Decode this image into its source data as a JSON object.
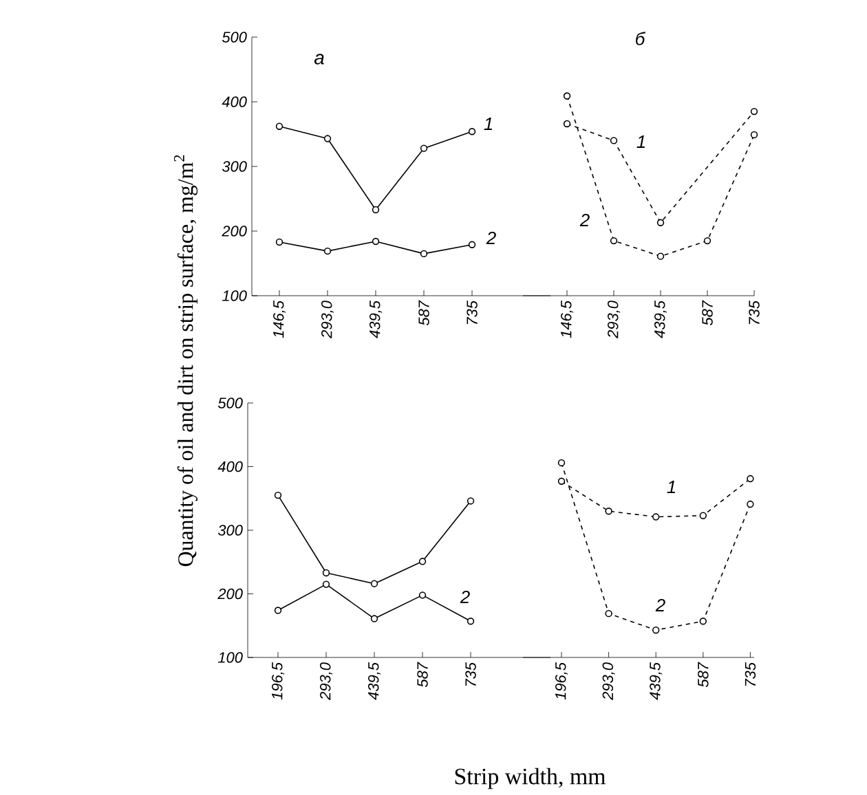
{
  "chart_data": [
    {
      "type": "line",
      "ylabel": "Quantity of oil and dirt on strip surface, mg/m$^{2}$",
      "categories": [
        "146,5",
        "293,0",
        "439,5",
        "587",
        "735"
      ],
      "ylim": [
        100,
        500
      ],
      "yticks": [
        100,
        200,
        300,
        400,
        500
      ],
      "marker": "circle",
      "line_style": "solid",
      "grid": false,
      "series": [
        {
          "color": "#000000",
          "values": [
            362,
            343,
            233,
            328,
            354
          ]
        },
        {
          "color": "#000000",
          "values": [
            183,
            169,
            184,
            165,
            179
          ]
        }
      ],
      "annotations": [
        "a",
        "1",
        "2"
      ]
    },
    {
      "type": "line",
      "categories": [
        "146,5",
        "293,0",
        "439,5",
        "587",
        "735"
      ],
      "ylim": [
        100,
        500
      ],
      "tick_labels": "x",
      "marker": "circle",
      "line_style": "dashed",
      "grid": false,
      "series": [
        {
          "color": "#000000",
          "values": [
            366,
            340,
            213,
            null,
            385
          ]
        },
        {
          "color": "#000000",
          "values": [
            409,
            185,
            161,
            185,
            349
          ]
        }
      ],
      "annotations": [
        "б",
        "1",
        "2"
      ]
    },
    {
      "type": "line",
      "xlabel": "Strip width, mm",
      "categories": [
        "196,5",
        "293,0",
        "439,5",
        "587",
        "735"
      ],
      "ylim": [
        100,
        500
      ],
      "yticks": [
        100,
        200,
        300,
        400,
        500
      ],
      "marker": "circle",
      "line_style": "solid",
      "grid": false,
      "series": [
        {
          "color": "#000000",
          "values": [
            355,
            233,
            216,
            251,
            346
          ]
        },
        {
          "color": "#000000",
          "values": [
            174,
            215,
            161,
            198,
            157
          ]
        }
      ],
      "annotations": [
        "2"
      ]
    },
    {
      "type": "line",
      "categories": [
        "196,5",
        "293,0",
        "439,5",
        "587",
        "735"
      ],
      "ylim": [
        100,
        500
      ],
      "tick_labels": "x",
      "marker": "circle",
      "line_style": "dashed",
      "grid": false,
      "series": [
        {
          "color": "#000000",
          "values": [
            377,
            330,
            321,
            323,
            381
          ]
        },
        {
          "color": "#000000",
          "values": [
            406,
            169,
            143,
            157,
            341
          ]
        }
      ],
      "annotations": [
        "1",
        "2"
      ]
    }
  ]
}
